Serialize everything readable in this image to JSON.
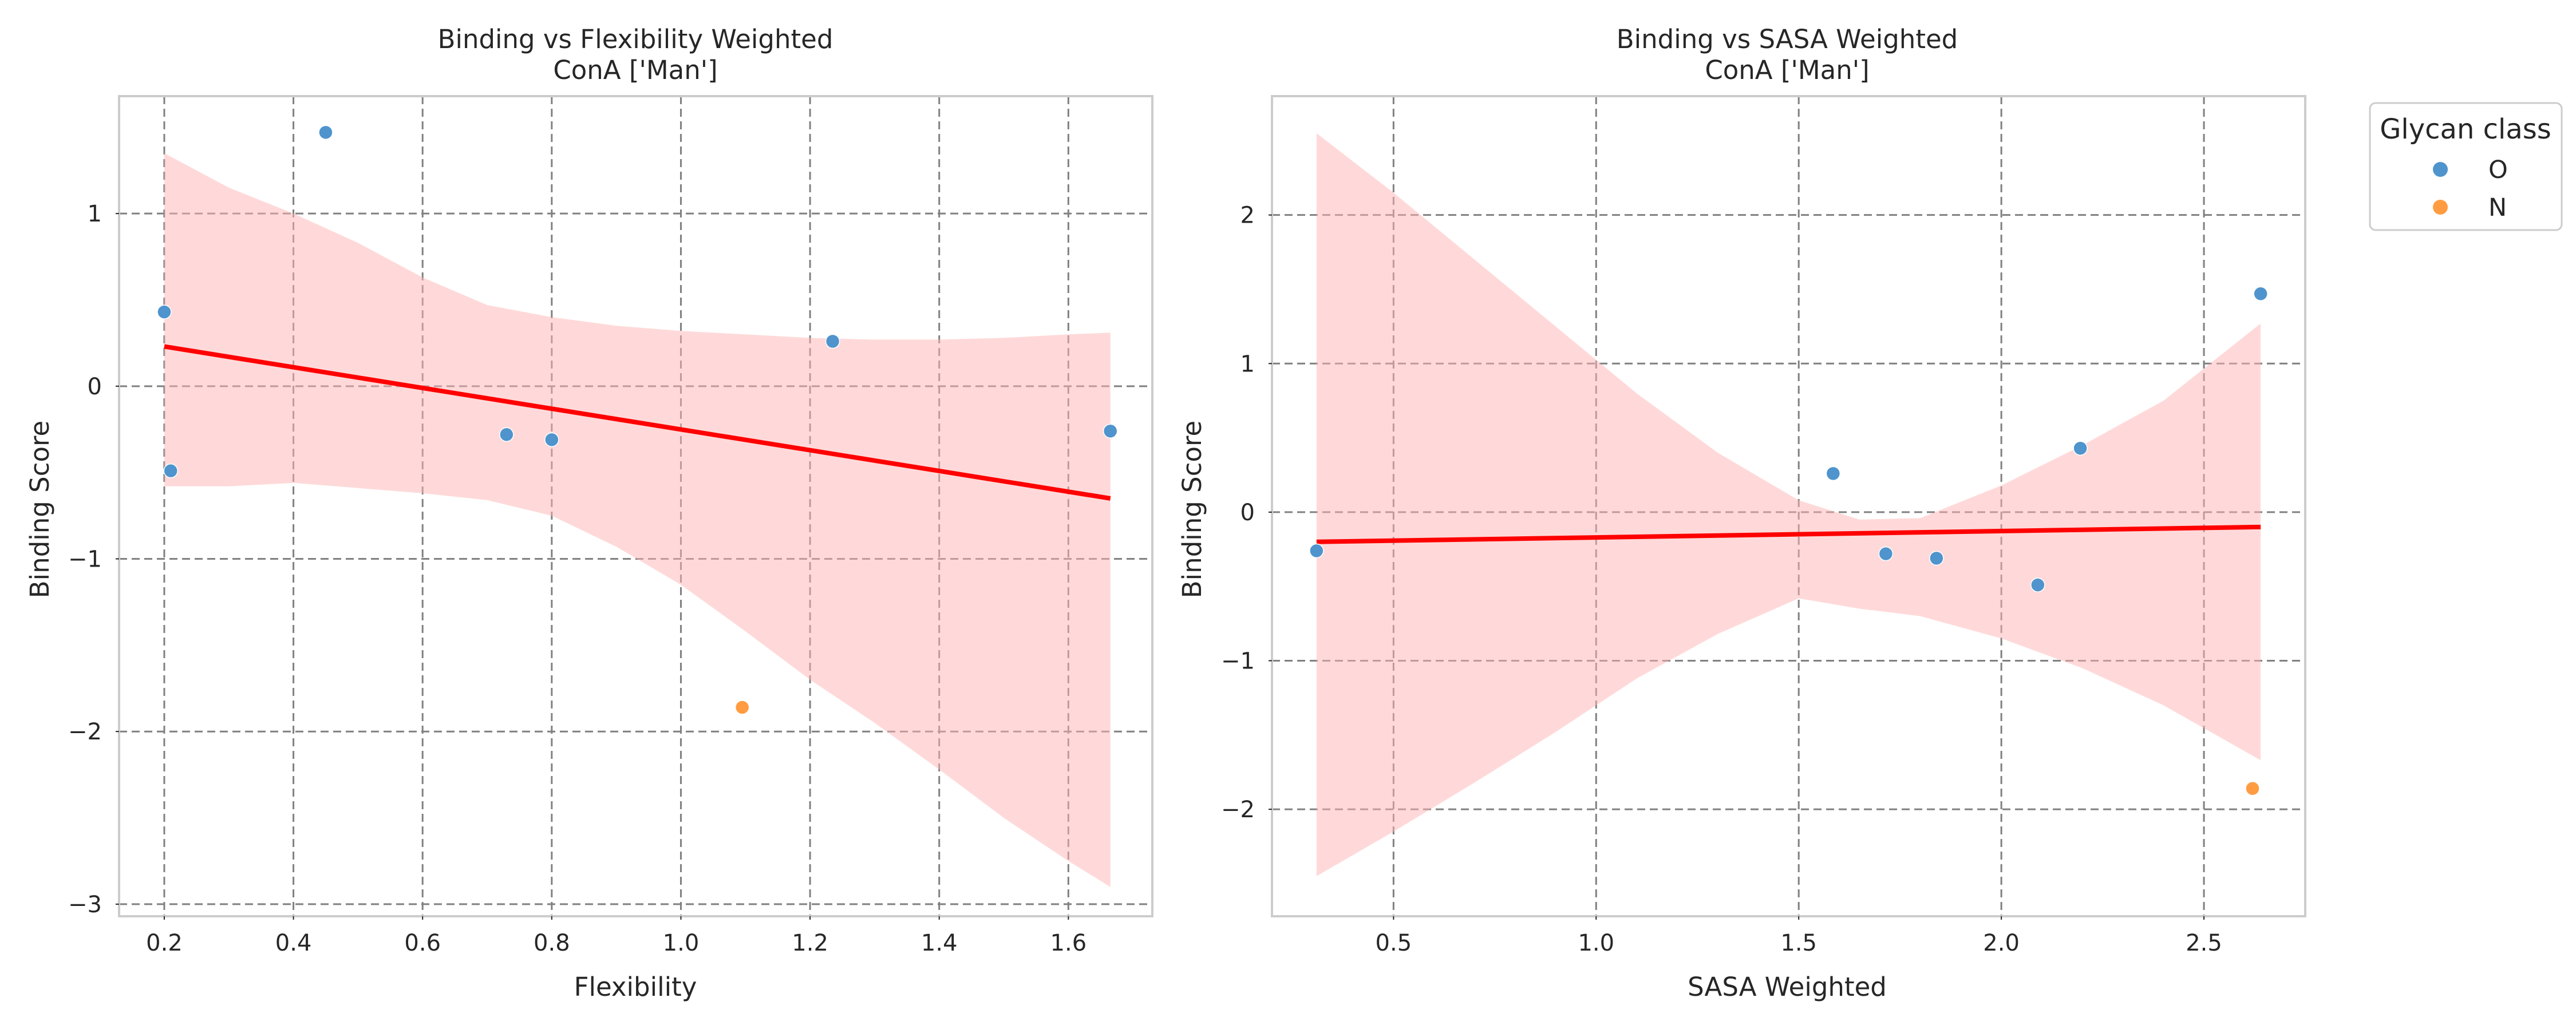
{
  "colors": {
    "O": "#4f94cd",
    "N": "#ff9c42",
    "fit_line": "#ff0000",
    "ci_band": "#ffb3b3"
  },
  "legend": {
    "title": "Glycan class",
    "entries": [
      {
        "label": "O",
        "color": "#4f94cd"
      },
      {
        "label": "N",
        "color": "#ff9c42"
      }
    ],
    "placement": "outside-top-right"
  },
  "chart_data": [
    {
      "type": "scatter",
      "title": "Binding vs Flexibility Weighted",
      "subtitle": "ConA ['Man']",
      "xlabel": "Flexibility",
      "ylabel": "Binding Score",
      "xlim": [
        0.13,
        1.73
      ],
      "ylim": [
        -3.07,
        1.68
      ],
      "xticks": [
        0.2,
        0.4,
        0.6,
        0.8,
        1.0,
        1.2,
        1.4,
        1.6
      ],
      "xtick_labels": [
        "0.2",
        "0.4",
        "0.6",
        "0.8",
        "1.0",
        "1.2",
        "1.4",
        "1.6"
      ],
      "yticks": [
        -3,
        -2,
        -1,
        0,
        1
      ],
      "ytick_labels": [
        "−3",
        "−2",
        "−1",
        "0",
        "1"
      ],
      "grid": true,
      "series": [
        {
          "name": "O",
          "points": [
            {
              "x": 0.2,
              "y": 0.43
            },
            {
              "x": 0.21,
              "y": -0.49
            },
            {
              "x": 0.45,
              "y": 1.47
            },
            {
              "x": 0.73,
              "y": -0.28
            },
            {
              "x": 0.8,
              "y": -0.31
            },
            {
              "x": 1.235,
              "y": 0.26
            },
            {
              "x": 1.665,
              "y": -0.26
            }
          ]
        },
        {
          "name": "N",
          "points": [
            {
              "x": 1.095,
              "y": -1.86
            }
          ]
        }
      ],
      "regression": {
        "x": [
          0.2,
          1.665
        ],
        "y": [
          0.23,
          -0.65
        ],
        "ci_band": {
          "x": [
            0.2,
            0.3,
            0.4,
            0.5,
            0.6,
            0.7,
            0.8,
            0.9,
            1.0,
            1.1,
            1.2,
            1.3,
            1.4,
            1.5,
            1.6,
            1.665
          ],
          "upper": [
            1.35,
            1.15,
            1.0,
            0.83,
            0.63,
            0.47,
            0.4,
            0.35,
            0.32,
            0.3,
            0.28,
            0.27,
            0.27,
            0.28,
            0.3,
            0.31
          ],
          "lower": [
            -0.58,
            -0.58,
            -0.56,
            -0.59,
            -0.62,
            -0.66,
            -0.75,
            -0.93,
            -1.15,
            -1.42,
            -1.7,
            -1.95,
            -2.22,
            -2.5,
            -2.75,
            -2.9
          ]
        }
      }
    },
    {
      "type": "scatter",
      "title": "Binding vs SASA Weighted",
      "subtitle": "ConA ['Man']",
      "xlabel": "SASA Weighted",
      "ylabel": "Binding Score",
      "xlim": [
        0.2,
        2.75
      ],
      "ylim": [
        -2.72,
        2.8
      ],
      "xticks": [
        0.5,
        1.0,
        1.5,
        2.0,
        2.5
      ],
      "xtick_labels": [
        "0.5",
        "1.0",
        "1.5",
        "2.0",
        "2.5"
      ],
      "yticks": [
        -2,
        -1,
        0,
        1,
        2
      ],
      "ytick_labels": [
        "−2",
        "−1",
        "0",
        "1",
        "2"
      ],
      "grid": true,
      "series": [
        {
          "name": "O",
          "points": [
            {
              "x": 0.31,
              "y": -0.26
            },
            {
              "x": 1.585,
              "y": 0.26
            },
            {
              "x": 1.715,
              "y": -0.28
            },
            {
              "x": 1.84,
              "y": -0.31
            },
            {
              "x": 2.09,
              "y": -0.49
            },
            {
              "x": 2.195,
              "y": 0.43
            },
            {
              "x": 2.64,
              "y": 1.47
            }
          ]
        },
        {
          "name": "N",
          "points": [
            {
              "x": 2.62,
              "y": -1.86
            }
          ]
        }
      ],
      "regression": {
        "x": [
          0.31,
          2.64
        ],
        "y": [
          -0.2,
          -0.1
        ],
        "ci_band": {
          "x": [
            0.31,
            0.5,
            0.7,
            0.9,
            1.1,
            1.3,
            1.5,
            1.65,
            1.8,
            2.0,
            2.2,
            2.4,
            2.64
          ],
          "upper": [
            2.55,
            2.15,
            1.7,
            1.25,
            0.8,
            0.4,
            0.08,
            -0.05,
            -0.04,
            0.18,
            0.45,
            0.75,
            1.27
          ],
          "lower": [
            -2.45,
            -2.15,
            -1.82,
            -1.48,
            -1.12,
            -0.82,
            -0.58,
            -0.65,
            -0.7,
            -0.85,
            -1.05,
            -1.3,
            -1.67
          ]
        }
      }
    }
  ]
}
